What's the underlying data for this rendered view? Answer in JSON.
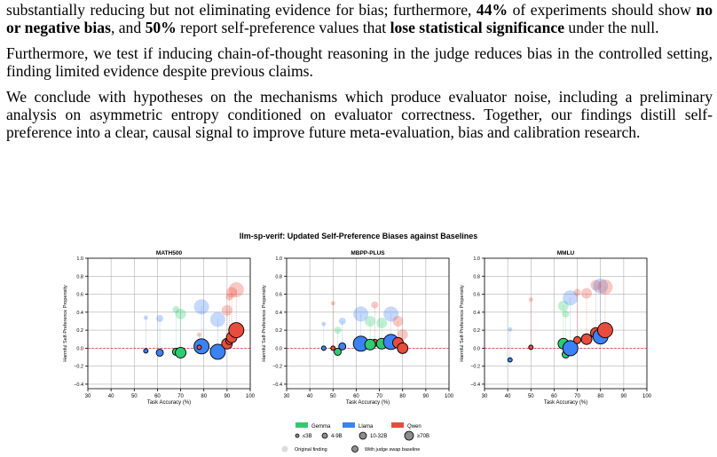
{
  "paragraphs": [
    [
      {
        "t": "substantially reducing but not eliminating evidence for bias; furthermore, ",
        "b": false
      },
      {
        "t": "44%",
        "b": true
      },
      {
        "t": " of experiments should show ",
        "b": false
      },
      {
        "t": "no or negative bias",
        "b": true
      },
      {
        "t": ", and ",
        "b": false
      },
      {
        "t": "50%",
        "b": true
      },
      {
        "t": " report self-preference values that ",
        "b": false
      },
      {
        "t": "lose statistical significance",
        "b": true
      },
      {
        "t": " under the null.",
        "b": false
      }
    ],
    [
      {
        "t": "Furthermore, we test if inducing chain-of-thought reasoning in the judge reduces bias in the controlled setting, finding limited evidence despite previous claims.",
        "b": false
      }
    ],
    [
      {
        "t": "We conclude with hypotheses on the mechanisms which produce evaluator noise, including a preliminary analysis on asymmetric entropy conditioned on evaluator correctness. Together, our findings distill self-preference into a clear, causal signal to improve future meta-evaluation, bias and calibration research.",
        "b": false
      }
    ]
  ],
  "figure": {
    "title": "llm-sp-verif: Updated Self-Preference Biases against Baselines",
    "xlabel": "Task Accuracy (%)",
    "ylabel": "Harmful Self-Preference Propensity",
    "x_ticks": [
      "30",
      "40",
      "50",
      "60",
      "70",
      "80",
      "90",
      "100"
    ],
    "y_ticks": [
      "1.0",
      "0.8",
      "0.6",
      "0.4",
      "0.2",
      "0.0",
      "−0.2",
      "−0.4"
    ],
    "legend": {
      "families": [
        {
          "name": "Gemma",
          "color": "#2ecc71"
        },
        {
          "name": "Llama",
          "color": "#3b82f6"
        },
        {
          "name": "Qwen",
          "color": "#e74c3c"
        }
      ],
      "sizes": [
        "≤3B",
        "4-9B",
        "10-32B",
        "≥70B"
      ],
      "original_label": "Original finding",
      "swap_label": "With judge swap baseline"
    }
  },
  "chart_data": [
    {
      "type": "scatter",
      "title": "MATH500",
      "xlabel": "Task Accuracy (%)",
      "ylabel": "Harmful Self-Preference Propensity",
      "xlim": [
        30,
        100
      ],
      "ylim": [
        -0.45,
        1.0
      ],
      "grid": true,
      "points": [
        {
          "fam": "Llama",
          "size": 0,
          "x": 55,
          "orig": 0.34,
          "swap": -0.03
        },
        {
          "fam": "Llama",
          "size": 1,
          "x": 61,
          "orig": 0.33,
          "swap": -0.05
        },
        {
          "fam": "Gemma",
          "size": 1,
          "x": 68,
          "orig": 0.43,
          "swap": -0.04
        },
        {
          "fam": "Gemma",
          "size": 2,
          "x": 70,
          "orig": 0.38,
          "swap": -0.05
        },
        {
          "fam": "Llama",
          "size": 3,
          "x": 79,
          "orig": 0.46,
          "swap": 0.02
        },
        {
          "fam": "Qwen",
          "size": 0,
          "x": 78,
          "orig": 0.15,
          "swap": 0.01
        },
        {
          "fam": "Llama",
          "size": 3,
          "x": 86,
          "orig": 0.32,
          "swap": -0.04
        },
        {
          "fam": "Qwen",
          "size": 2,
          "x": 90,
          "orig": 0.42,
          "swap": 0.05
        },
        {
          "fam": "Qwen",
          "size": 1,
          "x": 91,
          "orig": 0.57,
          "swap": 0.08
        },
        {
          "fam": "Qwen",
          "size": 2,
          "x": 92,
          "orig": 0.62,
          "swap": 0.12
        },
        {
          "fam": "Qwen",
          "size": 3,
          "x": 94,
          "orig": 0.65,
          "swap": 0.2
        }
      ]
    },
    {
      "type": "scatter",
      "title": "MBPP-PLUS",
      "xlabel": "Task Accuracy (%)",
      "ylabel": "Harmful Self-Preference Propensity",
      "xlim": [
        30,
        100
      ],
      "ylim": [
        -0.45,
        1.0
      ],
      "grid": true,
      "points": [
        {
          "fam": "Llama",
          "size": 0,
          "x": 46,
          "orig": 0.27,
          "swap": 0.0
        },
        {
          "fam": "Qwen",
          "size": 0,
          "x": 50,
          "orig": 0.5,
          "swap": 0.0
        },
        {
          "fam": "Gemma",
          "size": 1,
          "x": 52,
          "orig": 0.2,
          "swap": -0.04
        },
        {
          "fam": "Llama",
          "size": 1,
          "x": 54,
          "orig": 0.3,
          "swap": 0.02
        },
        {
          "fam": "Llama",
          "size": 3,
          "x": 62,
          "orig": 0.38,
          "swap": 0.05
        },
        {
          "fam": "Qwen",
          "size": 1,
          "x": 68,
          "orig": 0.48,
          "swap": 0.06
        },
        {
          "fam": "Gemma",
          "size": 2,
          "x": 66,
          "orig": 0.3,
          "swap": 0.04
        },
        {
          "fam": "Gemma",
          "size": 2,
          "x": 71,
          "orig": 0.28,
          "swap": 0.05
        },
        {
          "fam": "Llama",
          "size": 3,
          "x": 75,
          "orig": 0.38,
          "swap": 0.07
        },
        {
          "fam": "Qwen",
          "size": 2,
          "x": 78,
          "orig": 0.3,
          "swap": 0.06
        },
        {
          "fam": "Qwen",
          "size": 2,
          "x": 80,
          "orig": 0.15,
          "swap": 0.0
        }
      ]
    },
    {
      "type": "scatter",
      "title": "MMLU",
      "xlabel": "Task Accuracy (%)",
      "ylabel": "Harmful Self-Preference Propensity",
      "xlim": [
        30,
        100
      ],
      "ylim": [
        -0.45,
        1.0
      ],
      "grid": true,
      "points": [
        {
          "fam": "Llama",
          "size": 0,
          "x": 41,
          "orig": 0.21,
          "swap": -0.13
        },
        {
          "fam": "Qwen",
          "size": 0,
          "x": 50,
          "orig": 0.54,
          "swap": 0.01
        },
        {
          "fam": "Gemma",
          "size": 1,
          "x": 65,
          "orig": 0.38,
          "swap": -0.07
        },
        {
          "fam": "Gemma",
          "size": 2,
          "x": 64,
          "orig": 0.47,
          "swap": 0.05
        },
        {
          "fam": "Llama",
          "size": 3,
          "x": 67,
          "orig": 0.56,
          "swap": 0.0
        },
        {
          "fam": "Qwen",
          "size": 1,
          "x": 70,
          "orig": 0.62,
          "swap": 0.09
        },
        {
          "fam": "Qwen",
          "size": 2,
          "x": 74,
          "orig": 0.61,
          "swap": 0.1
        },
        {
          "fam": "Qwen",
          "size": 2,
          "x": 78,
          "orig": 0.7,
          "swap": 0.17
        },
        {
          "fam": "Llama",
          "size": 3,
          "x": 80,
          "orig": 0.69,
          "swap": 0.13
        },
        {
          "fam": "Qwen",
          "size": 3,
          "x": 82,
          "orig": 0.68,
          "swap": 0.2
        }
      ]
    }
  ]
}
